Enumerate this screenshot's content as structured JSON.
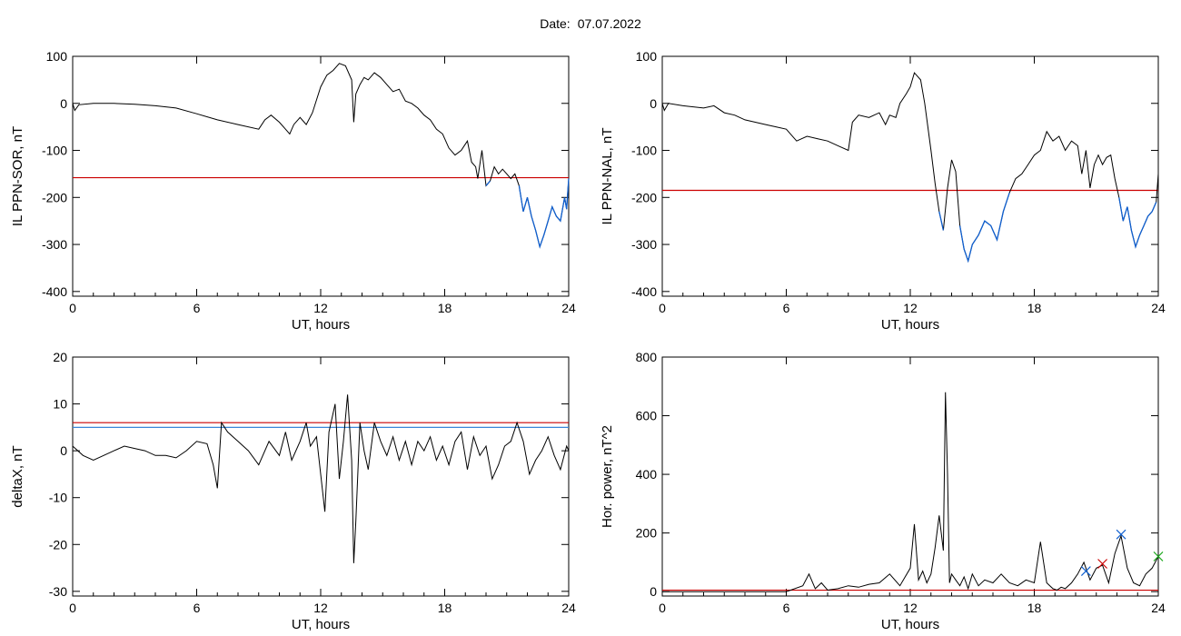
{
  "page": {
    "date_label": "Date:",
    "date_value": "07.07.2022"
  },
  "colors": {
    "data_line": "#000000",
    "red_threshold": "#cc0000",
    "blue_overlay": "#1060d0",
    "blue_threshold": "#3a86d8",
    "green_marker": "#22aa22"
  },
  "chart_data": [
    {
      "id": "p1",
      "type": "line",
      "title": "",
      "xlabel": "UT, hours",
      "ylabel": "IL PPN-SOR, nT",
      "xlim": [
        0,
        24
      ],
      "ylim": [
        -410,
        100
      ],
      "xticks": [
        0,
        6,
        12,
        18,
        24
      ],
      "yticks": [
        100,
        0,
        -100,
        -200,
        -300,
        -400
      ],
      "thresholds": [
        {
          "y": -158,
          "color": "#cc0000"
        }
      ],
      "highlight_below_threshold": true,
      "series": [
        {
          "x": [
            0,
            0.1,
            0.3,
            1,
            2,
            3,
            4,
            5,
            6,
            7,
            8,
            9,
            9.3,
            9.6,
            10,
            10.3,
            10.5,
            10.7,
            11,
            11.3,
            11.6,
            12,
            12.3,
            12.6,
            12.9,
            13.2,
            13.5,
            13.6,
            13.7,
            13.9,
            14.1,
            14.3,
            14.6,
            14.9,
            15.2,
            15.5,
            15.8,
            16.1,
            16.4,
            16.7,
            17,
            17.3,
            17.6,
            17.9,
            18.2,
            18.5,
            18.8,
            19.1,
            19.3,
            19.5,
            19.6,
            19.8,
            20,
            20.2,
            20.4,
            20.6,
            20.8,
            21,
            21.2,
            21.4,
            21.6,
            21.8,
            22,
            22.2,
            22.4,
            22.6,
            22.8,
            23,
            23.2,
            23.4,
            23.6,
            23.8,
            23.9,
            24
          ],
          "y": [
            0,
            -15,
            -3,
            0,
            0,
            -2,
            -5,
            -10,
            -22,
            -35,
            -45,
            -55,
            -35,
            -25,
            -40,
            -55,
            -65,
            -45,
            -30,
            -45,
            -20,
            35,
            60,
            70,
            85,
            80,
            50,
            -40,
            20,
            40,
            55,
            50,
            65,
            55,
            40,
            25,
            30,
            5,
            0,
            -10,
            -25,
            -35,
            -55,
            -65,
            -95,
            -110,
            -100,
            -80,
            -125,
            -135,
            -160,
            -100,
            -175,
            -165,
            -135,
            -150,
            -140,
            -150,
            -160,
            -150,
            -175,
            -230,
            -200,
            -240,
            -270,
            -305,
            -280,
            -250,
            -220,
            -240,
            -250,
            -200,
            -225,
            -160
          ]
        }
      ]
    },
    {
      "id": "p2",
      "type": "line",
      "title": "",
      "xlabel": "UT, hours",
      "ylabel": "IL PPN-NAL, nT",
      "xlim": [
        0,
        24
      ],
      "ylim": [
        -410,
        100
      ],
      "xticks": [
        0,
        6,
        12,
        18,
        24
      ],
      "yticks": [
        100,
        0,
        -100,
        -200,
        -300,
        -400
      ],
      "thresholds": [
        {
          "y": -185,
          "color": "#cc0000"
        }
      ],
      "highlight_below_threshold": true,
      "series": [
        {
          "x": [
            0,
            0.1,
            0.3,
            1,
            2,
            2.5,
            3,
            3.5,
            4,
            4.5,
            5,
            5.5,
            6,
            6.5,
            7,
            7.5,
            8,
            8.5,
            9,
            9.2,
            9.5,
            10,
            10.5,
            10.8,
            11,
            11.3,
            11.5,
            11.8,
            12,
            12.2,
            12.5,
            12.7,
            13,
            13.2,
            13.4,
            13.6,
            13.8,
            14,
            14.2,
            14.4,
            14.6,
            14.8,
            15,
            15.3,
            15.6,
            15.9,
            16.2,
            16.5,
            16.8,
            17.1,
            17.4,
            17.7,
            18,
            18.3,
            18.6,
            18.9,
            19.2,
            19.5,
            19.8,
            20.1,
            20.3,
            20.5,
            20.7,
            20.9,
            21.1,
            21.3,
            21.5,
            21.7,
            21.9,
            22.1,
            22.3,
            22.5,
            22.7,
            22.9,
            23.1,
            23.3,
            23.5,
            23.7,
            23.9,
            24
          ],
          "y": [
            0,
            -15,
            0,
            -5,
            -10,
            -5,
            -20,
            -25,
            -35,
            -40,
            -45,
            -50,
            -55,
            -80,
            -70,
            -75,
            -80,
            -90,
            -100,
            -40,
            -25,
            -30,
            -20,
            -45,
            -25,
            -30,
            0,
            20,
            35,
            65,
            50,
            0,
            -100,
            -170,
            -230,
            -270,
            -180,
            -120,
            -145,
            -260,
            -310,
            -335,
            -300,
            -280,
            -250,
            -260,
            -290,
            -230,
            -190,
            -160,
            -150,
            -130,
            -110,
            -100,
            -60,
            -80,
            -70,
            -100,
            -80,
            -90,
            -150,
            -100,
            -180,
            -130,
            -110,
            -130,
            -115,
            -110,
            -160,
            -200,
            -250,
            -220,
            -270,
            -305,
            -280,
            -260,
            -240,
            -230,
            -210,
            -150
          ]
        }
      ]
    },
    {
      "id": "p3",
      "type": "line",
      "title": "",
      "xlabel": "UT, hours",
      "ylabel": "deltaX, nT",
      "xlim": [
        0,
        24
      ],
      "ylim": [
        -31,
        20
      ],
      "xticks": [
        0,
        6,
        12,
        18,
        24
      ],
      "yticks": [
        20,
        10,
        0,
        -10,
        -20,
        -30
      ],
      "thresholds": [
        {
          "y": 6,
          "color": "#cc0000"
        },
        {
          "y": 5,
          "color": "#3a86d8"
        }
      ],
      "highlight_below_threshold": false,
      "series": [
        {
          "x": [
            0,
            0.5,
            1,
            1.5,
            2,
            2.5,
            3,
            3.5,
            4,
            4.5,
            5,
            5.5,
            6,
            6.5,
            6.8,
            7,
            7.2,
            7.5,
            8,
            8.5,
            9,
            9.5,
            10,
            10.3,
            10.6,
            11,
            11.3,
            11.5,
            11.8,
            12,
            12.2,
            12.4,
            12.7,
            12.9,
            13.1,
            13.3,
            13.5,
            13.6,
            13.7,
            13.9,
            14.1,
            14.3,
            14.6,
            14.9,
            15.2,
            15.5,
            15.8,
            16.1,
            16.4,
            16.7,
            17,
            17.3,
            17.6,
            17.9,
            18.2,
            18.5,
            18.8,
            19.1,
            19.4,
            19.7,
            20,
            20.3,
            20.6,
            20.9,
            21.2,
            21.5,
            21.8,
            22.1,
            22.4,
            22.7,
            23,
            23.3,
            23.6,
            23.9,
            24
          ],
          "y": [
            1,
            -1,
            -2,
            -1,
            0,
            1,
            0.5,
            0,
            -1,
            -1,
            -1.5,
            0,
            2,
            1.5,
            -3,
            -8,
            6,
            4,
            2,
            0,
            -3,
            2,
            -1,
            4,
            -2,
            2,
            6,
            1,
            3,
            -5,
            -13,
            4,
            10,
            -6,
            2,
            12,
            -2,
            -24,
            -15,
            6,
            0,
            -4,
            6,
            2,
            -1,
            3,
            -2,
            2,
            -3,
            2,
            0,
            3,
            -2,
            1,
            -3,
            2,
            4,
            -4,
            3,
            -1,
            1,
            -6,
            -3,
            1,
            2,
            6,
            2,
            -5,
            -2,
            0,
            3,
            -1,
            -4,
            1,
            0
          ]
        }
      ]
    },
    {
      "id": "p4",
      "type": "line",
      "title": "",
      "xlabel": "UT, hours",
      "ylabel": "Hor. power, nT^2",
      "xlim": [
        0,
        24
      ],
      "ylim": [
        -15,
        800
      ],
      "xticks": [
        0,
        6,
        12,
        18,
        24
      ],
      "yticks": [
        800,
        600,
        400,
        200,
        0
      ],
      "thresholds": [
        {
          "y": 5,
          "color": "#cc0000"
        }
      ],
      "highlight_below_threshold": false,
      "markers": [
        {
          "x": 20.5,
          "y": 70,
          "color": "#1060d0"
        },
        {
          "x": 21.3,
          "y": 95,
          "color": "#cc0000"
        },
        {
          "x": 22.2,
          "y": 195,
          "color": "#1060d0"
        },
        {
          "x": 24,
          "y": 120,
          "color": "#22aa22"
        }
      ],
      "series": [
        {
          "x": [
            0,
            2,
            4,
            6,
            6.8,
            7.1,
            7.4,
            7.7,
            8,
            8.5,
            9,
            9.5,
            10,
            10.5,
            11,
            11.5,
            12,
            12.2,
            12.4,
            12.6,
            12.8,
            13,
            13.2,
            13.4,
            13.6,
            13.7,
            13.8,
            13.9,
            14,
            14.2,
            14.4,
            14.6,
            14.8,
            15,
            15.3,
            15.6,
            16,
            16.4,
            16.8,
            17.2,
            17.6,
            18,
            18.3,
            18.6,
            18.9,
            19.1,
            19.3,
            19.5,
            19.8,
            20.1,
            20.4,
            20.7,
            21,
            21.3,
            21.6,
            21.9,
            22.2,
            22.5,
            22.8,
            23.1,
            23.4,
            23.7,
            24
          ],
          "y": [
            0,
            0,
            0,
            0,
            20,
            60,
            10,
            30,
            5,
            10,
            20,
            15,
            25,
            30,
            60,
            20,
            80,
            230,
            40,
            70,
            30,
            60,
            150,
            260,
            140,
            680,
            400,
            30,
            60,
            40,
            20,
            50,
            10,
            60,
            20,
            40,
            30,
            60,
            30,
            20,
            40,
            30,
            170,
            30,
            10,
            5,
            15,
            10,
            30,
            60,
            100,
            40,
            80,
            90,
            30,
            130,
            190,
            80,
            30,
            20,
            60,
            80,
            120
          ]
        }
      ]
    }
  ]
}
